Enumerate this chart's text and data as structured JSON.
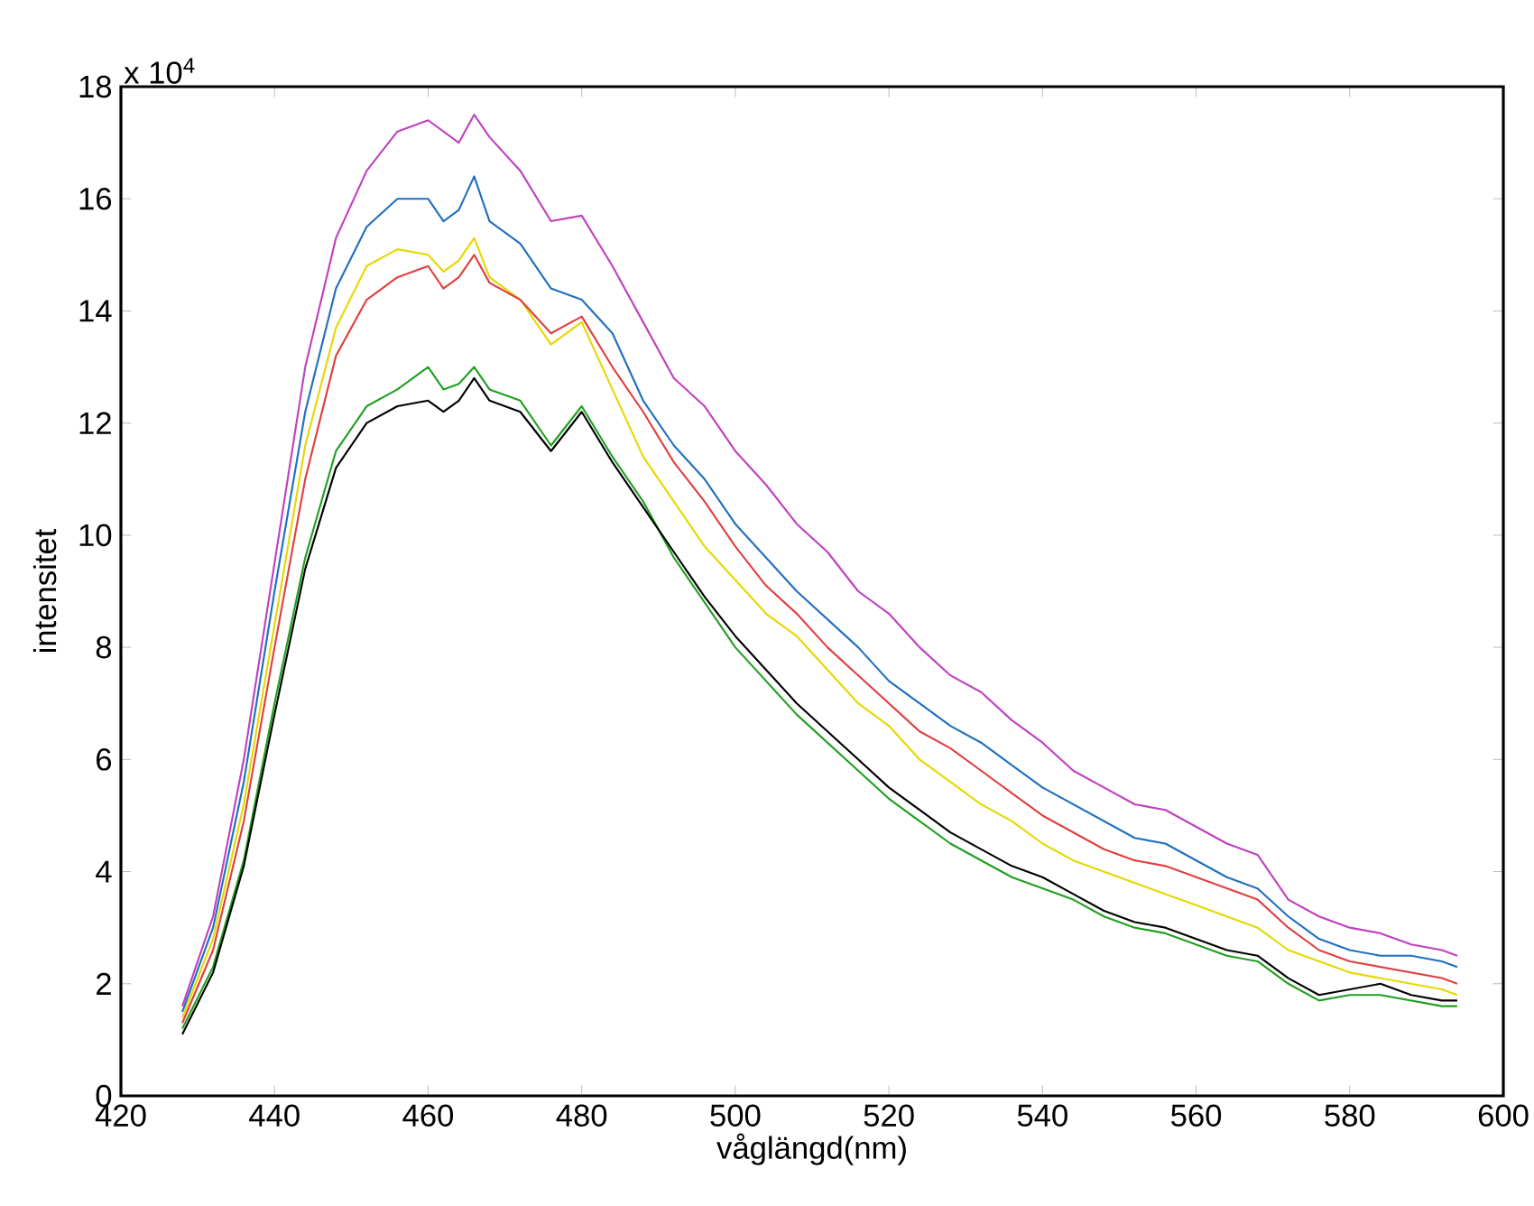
{
  "chart_data": {
    "type": "line",
    "xlabel": "våglängd(nm)",
    "ylabel": "intensitet",
    "annotations": [
      "x 10$^{4}$"
    ],
    "xlim": [
      420,
      600
    ],
    "xticks": [
      420,
      440,
      460,
      480,
      500,
      520,
      540,
      560,
      580,
      600
    ],
    "ylim": [
      0,
      18
    ],
    "yticks": [
      0,
      2,
      4,
      6,
      8,
      10,
      12,
      14,
      16,
      18
    ],
    "grid": false,
    "marker": "none",
    "line_style": "solid",
    "x": [
      428,
      432,
      436,
      440,
      444,
      448,
      452,
      456,
      460,
      462,
      464,
      466,
      468,
      472,
      476,
      480,
      484,
      488,
      492,
      496,
      500,
      504,
      508,
      512,
      516,
      520,
      524,
      528,
      532,
      536,
      540,
      544,
      548,
      552,
      556,
      560,
      564,
      568,
      572,
      576,
      580,
      584,
      588,
      592,
      594
    ],
    "series": [
      {
        "color": "#c040c0",
        "values": [
          1.6,
          3.2,
          6.0,
          9.5,
          13.0,
          15.3,
          16.5,
          17.2,
          17.4,
          17.2,
          17.0,
          17.5,
          17.1,
          16.5,
          15.6,
          15.7,
          14.8,
          13.8,
          12.8,
          12.3,
          11.5,
          10.9,
          10.2,
          9.7,
          9.0,
          8.6,
          8.0,
          7.5,
          7.2,
          6.7,
          6.3,
          5.8,
          5.5,
          5.2,
          5.1,
          4.8,
          4.5,
          4.3,
          3.5,
          3.2,
          3.0,
          2.9,
          2.7,
          2.6,
          2.5
        ]
      },
      {
        "color": "#1f6fc0",
        "values": [
          1.5,
          3.0,
          5.6,
          9.0,
          12.2,
          14.4,
          15.5,
          16.0,
          16.0,
          15.6,
          15.8,
          16.4,
          15.6,
          15.2,
          14.4,
          14.2,
          13.6,
          12.4,
          11.6,
          11.0,
          10.2,
          9.6,
          9.0,
          8.5,
          8.0,
          7.4,
          7.0,
          6.6,
          6.3,
          5.9,
          5.5,
          5.2,
          4.9,
          4.6,
          4.5,
          4.2,
          3.9,
          3.7,
          3.2,
          2.8,
          2.6,
          2.5,
          2.5,
          2.4,
          2.3
        ]
      },
      {
        "color": "#e6d800",
        "values": [
          1.4,
          2.8,
          5.2,
          8.4,
          11.6,
          13.7,
          14.8,
          15.1,
          15.0,
          14.7,
          14.9,
          15.3,
          14.6,
          14.2,
          13.4,
          13.8,
          12.6,
          11.4,
          10.6,
          9.8,
          9.2,
          8.6,
          8.2,
          7.6,
          7.0,
          6.6,
          6.0,
          5.6,
          5.2,
          4.9,
          4.5,
          4.2,
          4.0,
          3.8,
          3.6,
          3.4,
          3.2,
          3.0,
          2.6,
          2.4,
          2.2,
          2.1,
          2.0,
          1.9,
          1.8
        ]
      },
      {
        "color": "#e04040",
        "values": [
          1.3,
          2.6,
          4.9,
          8.0,
          11.0,
          13.2,
          14.2,
          14.6,
          14.8,
          14.4,
          14.6,
          15.0,
          14.5,
          14.2,
          13.6,
          13.9,
          13.0,
          12.2,
          11.3,
          10.6,
          9.8,
          9.1,
          8.6,
          8.0,
          7.5,
          7.0,
          6.5,
          6.2,
          5.8,
          5.4,
          5.0,
          4.7,
          4.4,
          4.2,
          4.1,
          3.9,
          3.7,
          3.5,
          3.0,
          2.6,
          2.4,
          2.3,
          2.2,
          2.1,
          2.0
        ]
      },
      {
        "color": "#20a020",
        "values": [
          1.2,
          2.3,
          4.2,
          7.0,
          9.6,
          11.5,
          12.3,
          12.6,
          13.0,
          12.6,
          12.7,
          13.0,
          12.6,
          12.4,
          11.6,
          12.3,
          11.4,
          10.6,
          9.6,
          8.8,
          8.0,
          7.4,
          6.8,
          6.3,
          5.8,
          5.3,
          4.9,
          4.5,
          4.2,
          3.9,
          3.7,
          3.5,
          3.2,
          3.0,
          2.9,
          2.7,
          2.5,
          2.4,
          2.0,
          1.7,
          1.8,
          1.8,
          1.7,
          1.6,
          1.6
        ]
      },
      {
        "color": "#000000",
        "values": [
          1.1,
          2.2,
          4.1,
          6.8,
          9.4,
          11.2,
          12.0,
          12.3,
          12.4,
          12.2,
          12.4,
          12.8,
          12.4,
          12.2,
          11.5,
          12.2,
          11.3,
          10.5,
          9.7,
          8.9,
          8.2,
          7.6,
          7.0,
          6.5,
          6.0,
          5.5,
          5.1,
          4.7,
          4.4,
          4.1,
          3.9,
          3.6,
          3.3,
          3.1,
          3.0,
          2.8,
          2.6,
          2.5,
          2.1,
          1.8,
          1.9,
          2.0,
          1.8,
          1.7,
          1.7
        ]
      }
    ]
  }
}
